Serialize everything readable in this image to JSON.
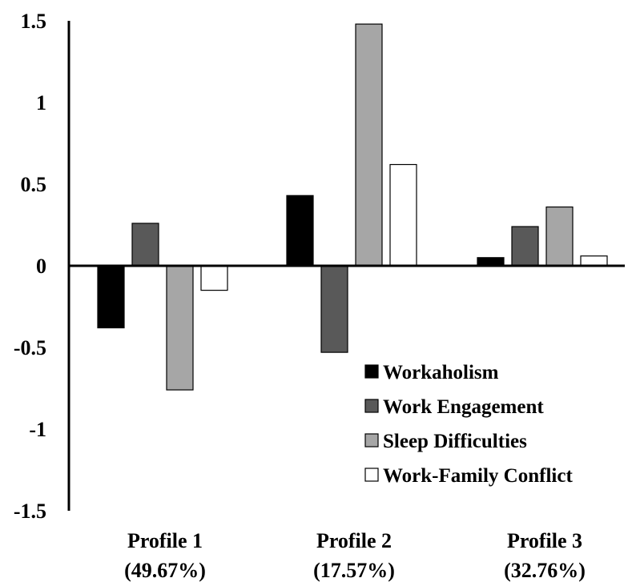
{
  "chart_data": {
    "type": "bar",
    "categories": [
      [
        "Profile 1",
        "(49.67%)"
      ],
      [
        "Profile 2",
        "(17.57%)"
      ],
      [
        "Profile 3",
        "(32.76%)"
      ]
    ],
    "series": [
      {
        "name": "Workaholism",
        "values": [
          -0.38,
          0.43,
          0.05
        ],
        "color": "#000000"
      },
      {
        "name": "Work Engagement",
        "values": [
          0.26,
          -0.53,
          0.24
        ],
        "color": "#595959"
      },
      {
        "name": "Sleep Difficulties",
        "values": [
          -0.76,
          1.48,
          0.36
        ],
        "color": "#a6a6a6"
      },
      {
        "name": "Work-Family Conflict",
        "values": [
          -0.15,
          0.62,
          0.06
        ],
        "color": "#ffffff"
      }
    ],
    "ylim": [
      -1.5,
      1.5
    ],
    "yticks": [
      "1.5",
      "1",
      "0.5",
      "0",
      "-0.5",
      "-1",
      "-1.5"
    ],
    "title": "",
    "xlabel": "",
    "ylabel": "",
    "grid": false,
    "legend_position": "bottom-right"
  }
}
